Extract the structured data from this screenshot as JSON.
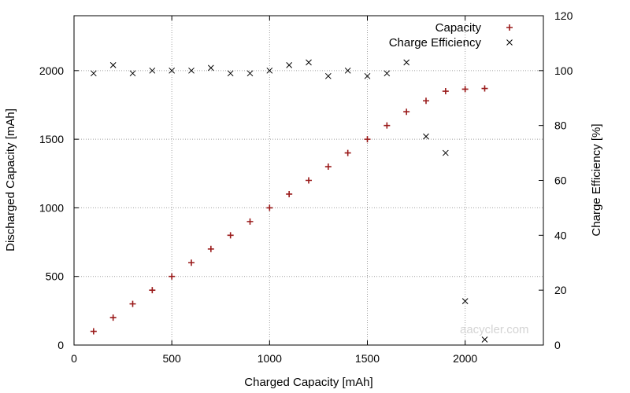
{
  "chart_data": {
    "type": "scatter",
    "xlabel": "Charged Capacity [mAh]",
    "ylabel": "Discharged Capacity [mAh]",
    "y2label": "Charge Efficiency [%]",
    "xlim": [
      0,
      2400
    ],
    "ylim": [
      0,
      2400
    ],
    "y2lim": [
      0,
      120
    ],
    "x_ticks": [
      0,
      500,
      1000,
      1500,
      2000
    ],
    "y_ticks": [
      0,
      500,
      1000,
      1500,
      2000
    ],
    "y2_ticks": [
      0,
      20,
      40,
      60,
      80,
      100,
      120
    ],
    "grid": true,
    "legend_position": "top-right",
    "watermark": "aacycler.com",
    "series": [
      {
        "name": "Capacity",
        "axis": "left",
        "marker": "plus",
        "color": "#9a1a1a",
        "x": [
          100,
          200,
          300,
          400,
          500,
          600,
          700,
          800,
          900,
          1000,
          1100,
          1200,
          1300,
          1400,
          1500,
          1600,
          1700,
          1800,
          1900,
          2000,
          2100
        ],
        "y": [
          100,
          200,
          300,
          400,
          500,
          600,
          700,
          800,
          900,
          1000,
          1100,
          1200,
          1300,
          1400,
          1500,
          1600,
          1700,
          1780,
          1850,
          1865,
          1870
        ]
      },
      {
        "name": "Charge Efficiency",
        "axis": "right",
        "marker": "cross",
        "color": "#000000",
        "x": [
          100,
          200,
          300,
          400,
          500,
          600,
          700,
          800,
          900,
          1000,
          1100,
          1200,
          1300,
          1400,
          1500,
          1600,
          1700,
          1800,
          1900,
          2000,
          2100
        ],
        "y": [
          99,
          102,
          99,
          100,
          100,
          100,
          101,
          99,
          99,
          100,
          102,
          103,
          98,
          100,
          98,
          99,
          103,
          76,
          70,
          16,
          2
        ]
      }
    ]
  }
}
